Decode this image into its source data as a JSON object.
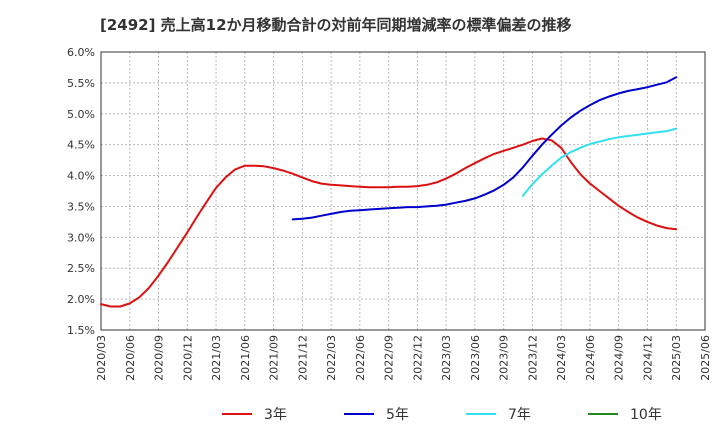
{
  "chart_data": {
    "type": "line",
    "title": "[2492]  売上高12か月移動合計の対前年同期増減率の標準偏差の推移",
    "xlabel": "",
    "ylabel": "",
    "ylim": [
      1.5,
      6.0
    ],
    "y_ticks": [
      "6.0%",
      "5.5%",
      "5.0%",
      "4.5%",
      "4.0%",
      "3.5%",
      "3.0%",
      "2.5%",
      "2.0%",
      "1.5%"
    ],
    "x_ticks": [
      "2020/03",
      "2020/06",
      "2020/09",
      "2020/12",
      "2021/03",
      "2021/06",
      "2021/09",
      "2021/12",
      "2022/03",
      "2022/06",
      "2022/09",
      "2022/12",
      "2023/03",
      "2023/06",
      "2023/09",
      "2023/12",
      "2024/03",
      "2024/06",
      "2024/09",
      "2024/12",
      "2025/03",
      "2025/06"
    ],
    "grid": true,
    "legend_position": "bottom",
    "series": [
      {
        "name": "3年",
        "color": "#dd1111",
        "points": [
          [
            "2020/03",
            1.92
          ],
          [
            "2020/04",
            1.88
          ],
          [
            "2020/05",
            1.88
          ],
          [
            "2020/06",
            1.93
          ],
          [
            "2020/07",
            2.03
          ],
          [
            "2020/08",
            2.18
          ],
          [
            "2020/09",
            2.38
          ],
          [
            "2020/10",
            2.6
          ],
          [
            "2020/11",
            2.84
          ],
          [
            "2020/12",
            3.08
          ],
          [
            "2021/01",
            3.33
          ],
          [
            "2021/02",
            3.57
          ],
          [
            "2021/03",
            3.8
          ],
          [
            "2021/04",
            3.97
          ],
          [
            "2021/05",
            4.1
          ],
          [
            "2021/06",
            4.16
          ],
          [
            "2021/07",
            4.16
          ],
          [
            "2021/08",
            4.15
          ],
          [
            "2021/09",
            4.12
          ],
          [
            "2021/10",
            4.08
          ],
          [
            "2021/11",
            4.03
          ],
          [
            "2021/12",
            3.97
          ],
          [
            "2022/01",
            3.91
          ],
          [
            "2022/02",
            3.87
          ],
          [
            "2022/03",
            3.85
          ],
          [
            "2022/04",
            3.84
          ],
          [
            "2022/05",
            3.83
          ],
          [
            "2022/06",
            3.82
          ],
          [
            "2022/07",
            3.81
          ],
          [
            "2022/08",
            3.81
          ],
          [
            "2022/09",
            3.81
          ],
          [
            "2022/10",
            3.82
          ],
          [
            "2022/11",
            3.82
          ],
          [
            "2022/12",
            3.83
          ],
          [
            "2023/01",
            3.85
          ],
          [
            "2023/02",
            3.89
          ],
          [
            "2023/03",
            3.95
          ],
          [
            "2023/04",
            4.03
          ],
          [
            "2023/05",
            4.12
          ],
          [
            "2023/06",
            4.2
          ],
          [
            "2023/07",
            4.28
          ],
          [
            "2023/08",
            4.35
          ],
          [
            "2023/09",
            4.4
          ],
          [
            "2023/10",
            4.45
          ],
          [
            "2023/11",
            4.5
          ],
          [
            "2023/12",
            4.56
          ],
          [
            "2024/01",
            4.6
          ],
          [
            "2024/02",
            4.57
          ],
          [
            "2024/03",
            4.45
          ],
          [
            "2024/04",
            4.22
          ],
          [
            "2024/05",
            4.02
          ],
          [
            "2024/06",
            3.87
          ],
          [
            "2024/07",
            3.75
          ],
          [
            "2024/08",
            3.63
          ],
          [
            "2024/09",
            3.51
          ],
          [
            "2024/10",
            3.41
          ],
          [
            "2024/11",
            3.32
          ],
          [
            "2024/12",
            3.25
          ],
          [
            "2025/01",
            3.19
          ],
          [
            "2025/02",
            3.15
          ],
          [
            "2025/03",
            3.13
          ]
        ]
      },
      {
        "name": "5年",
        "color": "#0000cc",
        "points": [
          [
            "2021/11",
            3.29
          ],
          [
            "2021/12",
            3.3
          ],
          [
            "2022/01",
            3.32
          ],
          [
            "2022/02",
            3.35
          ],
          [
            "2022/03",
            3.38
          ],
          [
            "2022/04",
            3.41
          ],
          [
            "2022/05",
            3.43
          ],
          [
            "2022/06",
            3.44
          ],
          [
            "2022/07",
            3.45
          ],
          [
            "2022/08",
            3.46
          ],
          [
            "2022/09",
            3.47
          ],
          [
            "2022/10",
            3.48
          ],
          [
            "2022/11",
            3.49
          ],
          [
            "2022/12",
            3.49
          ],
          [
            "2023/01",
            3.5
          ],
          [
            "2023/02",
            3.51
          ],
          [
            "2023/03",
            3.53
          ],
          [
            "2023/04",
            3.56
          ],
          [
            "2023/05",
            3.59
          ],
          [
            "2023/06",
            3.63
          ],
          [
            "2023/07",
            3.69
          ],
          [
            "2023/08",
            3.76
          ],
          [
            "2023/09",
            3.85
          ],
          [
            "2023/10",
            3.97
          ],
          [
            "2023/11",
            4.13
          ],
          [
            "2023/12",
            4.32
          ],
          [
            "2024/01",
            4.5
          ],
          [
            "2024/02",
            4.66
          ],
          [
            "2024/03",
            4.81
          ],
          [
            "2024/04",
            4.94
          ],
          [
            "2024/05",
            5.05
          ],
          [
            "2024/06",
            5.14
          ],
          [
            "2024/07",
            5.22
          ],
          [
            "2024/08",
            5.28
          ],
          [
            "2024/09",
            5.33
          ],
          [
            "2024/10",
            5.37
          ],
          [
            "2024/11",
            5.4
          ],
          [
            "2024/12",
            5.43
          ],
          [
            "2025/01",
            5.47
          ],
          [
            "2025/02",
            5.51
          ],
          [
            "2025/03",
            5.59
          ]
        ]
      },
      {
        "name": "7年",
        "color": "#33e0f0",
        "points": [
          [
            "2023/11",
            3.67
          ],
          [
            "2023/12",
            3.86
          ],
          [
            "2024/01",
            4.02
          ],
          [
            "2024/02",
            4.16
          ],
          [
            "2024/03",
            4.29
          ],
          [
            "2024/04",
            4.38
          ],
          [
            "2024/05",
            4.45
          ],
          [
            "2024/06",
            4.51
          ],
          [
            "2024/07",
            4.55
          ],
          [
            "2024/08",
            4.59
          ],
          [
            "2024/09",
            4.62
          ],
          [
            "2024/10",
            4.64
          ],
          [
            "2024/11",
            4.66
          ],
          [
            "2024/12",
            4.68
          ],
          [
            "2025/01",
            4.7
          ],
          [
            "2025/02",
            4.72
          ],
          [
            "2025/03",
            4.76
          ]
        ]
      },
      {
        "name": "10年",
        "color": "#228822",
        "points": []
      }
    ]
  }
}
